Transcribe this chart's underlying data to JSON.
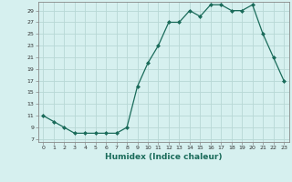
{
  "x": [
    0,
    1,
    2,
    3,
    4,
    5,
    6,
    7,
    8,
    9,
    10,
    11,
    12,
    13,
    14,
    15,
    16,
    17,
    18,
    19,
    20,
    21,
    22,
    23
  ],
  "y": [
    11,
    10,
    9,
    8,
    8,
    8,
    8,
    8,
    9,
    16,
    20,
    23,
    27,
    27,
    29,
    28,
    30,
    30,
    29,
    29,
    30,
    25,
    21,
    17
  ],
  "line_color": "#1a6b5a",
  "marker": "D",
  "marker_size": 2.0,
  "bg_color": "#d6f0ef",
  "grid_color": "#b8d8d5",
  "xlabel": "Humidex (Indice chaleur)",
  "yticks": [
    7,
    9,
    11,
    13,
    15,
    17,
    19,
    21,
    23,
    25,
    27,
    29
  ],
  "xticks": [
    0,
    1,
    2,
    3,
    4,
    5,
    6,
    7,
    8,
    9,
    10,
    11,
    12,
    13,
    14,
    15,
    16,
    17,
    18,
    19,
    20,
    21,
    22,
    23
  ],
  "ylim": [
    6.5,
    30.5
  ],
  "xlim": [
    -0.5,
    23.5
  ]
}
